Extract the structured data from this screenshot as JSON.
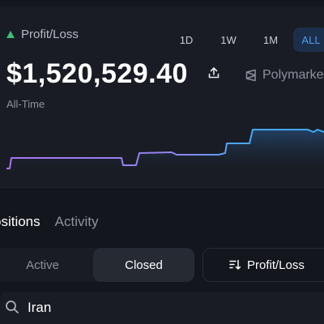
{
  "pnl": {
    "label": "Profit/Loss",
    "amount": "$1,520,529.40",
    "period": "All-Time",
    "trend_color": "#3fbf77"
  },
  "range_tabs": [
    {
      "label": "1D",
      "active": false
    },
    {
      "label": "1W",
      "active": false
    },
    {
      "label": "1M",
      "active": false
    },
    {
      "label": "ALL",
      "active": true
    }
  ],
  "brand": {
    "name": "Polymarket"
  },
  "chart_data": {
    "type": "line",
    "line_color_start": "#a774ee",
    "line_color_end": "#4aa8f5"
  },
  "tabs": [
    {
      "label": "ositions",
      "active": true
    },
    {
      "label": "Activity",
      "active": false
    }
  ],
  "filter": {
    "options": [
      {
        "label": "Active",
        "selected": false
      },
      {
        "label": "Closed",
        "selected": true
      }
    ]
  },
  "sort": {
    "label": "Profit/Loss",
    "icon": "sort-icon"
  },
  "search": {
    "value": "Iran",
    "icon": "search-icon"
  }
}
